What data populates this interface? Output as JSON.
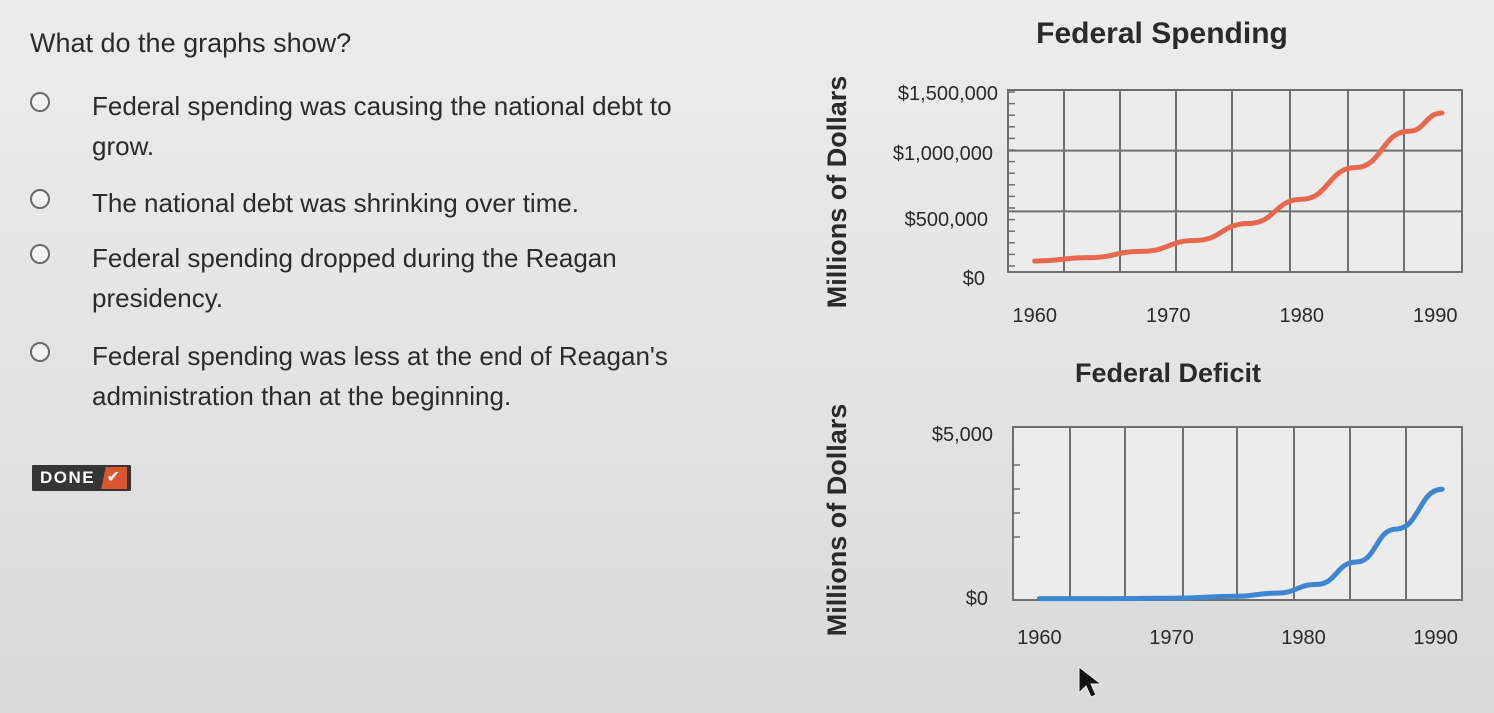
{
  "question": "What do the graphs show?",
  "options": [
    {
      "label": "Federal spending was causing the national debt to grow."
    },
    {
      "label": "The national debt was shrinking over time."
    },
    {
      "label": "Federal spending dropped during the Reagan presidency."
    },
    {
      "label": "Federal spending was less at the end of Reagan's administration than at the beginning."
    }
  ],
  "done_label": "DONE",
  "done_check": "✔",
  "chart_data": [
    {
      "type": "line",
      "title": "Federal Spending",
      "ylabel": "Millions of Dollars",
      "xlabel": "",
      "x_ticks": [
        "1960",
        "1970",
        "1980",
        "1990"
      ],
      "y_ticks": [
        "$1,500,000",
        "$1,000,000",
        "$500,000",
        "$0"
      ],
      "ylim": [
        0,
        1500000
      ],
      "xlim": [
        1958,
        1992
      ],
      "color": "#e8684e",
      "series": [
        {
          "x": [
            1960,
            1964,
            1968,
            1972,
            1976,
            1980,
            1984,
            1988,
            1990.5
          ],
          "y": [
            90000,
            118000,
            170000,
            260000,
            400000,
            600000,
            860000,
            1160000,
            1310000
          ]
        }
      ]
    },
    {
      "type": "line",
      "title": "Federal Deficit",
      "ylabel": "Millions of Dollars",
      "xlabel": "",
      "x_ticks": [
        "1960",
        "1970",
        "1980",
        "1990"
      ],
      "y_ticks": [
        "$5,000",
        "$0"
      ],
      "ylim": [
        0,
        5000
      ],
      "xlim": [
        1958,
        1992
      ],
      "color": "#3f86d1",
      "series": [
        {
          "x": [
            1960,
            1965,
            1970,
            1975,
            1978,
            1981,
            1984,
            1987,
            1990.5
          ],
          "y": [
            40,
            40,
            50,
            110,
            200,
            450,
            1100,
            2050,
            3200
          ]
        }
      ]
    }
  ]
}
